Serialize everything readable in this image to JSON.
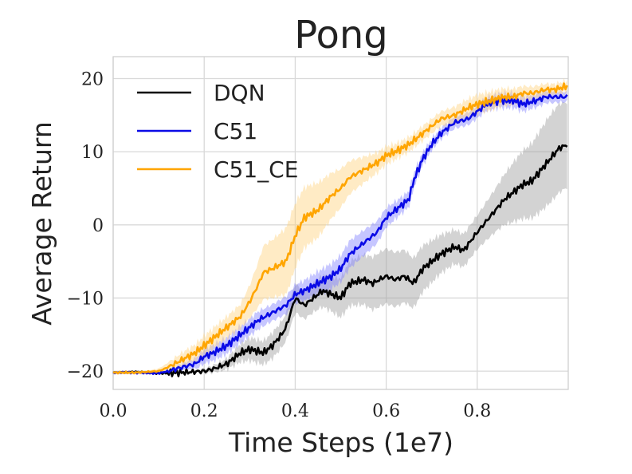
{
  "chart_data": {
    "type": "line",
    "title": "Pong",
    "xlabel": "Time Steps (1e7)",
    "ylabel": "Average Return",
    "xlim": [
      0.0,
      1.0
    ],
    "ylim": [
      -22.5,
      23
    ],
    "xticks": [
      0.0,
      0.2,
      0.4,
      0.6,
      0.8
    ],
    "xtick_labels": [
      "0.0",
      "0.2",
      "0.4",
      "0.6",
      "0.8"
    ],
    "yticks": [
      -20,
      -10,
      0,
      10,
      20
    ],
    "ytick_labels": [
      "−20",
      "−10",
      "0",
      "10",
      "20"
    ],
    "grid": true,
    "legend_position": "upper-left",
    "series": [
      {
        "name": "DQN",
        "color": "#000000",
        "band_color": "#9e9e9e",
        "x": [
          0.0,
          0.05,
          0.1,
          0.15,
          0.2,
          0.22,
          0.25,
          0.28,
          0.3,
          0.33,
          0.35,
          0.37,
          0.38,
          0.4,
          0.42,
          0.44,
          0.46,
          0.48,
          0.5,
          0.52,
          0.55,
          0.57,
          0.6,
          0.62,
          0.64,
          0.66,
          0.68,
          0.7,
          0.72,
          0.75,
          0.77,
          0.8,
          0.82,
          0.84,
          0.86,
          0.88,
          0.9,
          0.92,
          0.94,
          0.96,
          0.98,
          1.0
        ],
        "values": [
          -20.2,
          -20.1,
          -20.3,
          -20.2,
          -20.0,
          -19.7,
          -19.0,
          -17.5,
          -17.0,
          -17.5,
          -16.5,
          -15.0,
          -14.0,
          -10.0,
          -11.0,
          -10.0,
          -9.0,
          -9.5,
          -10.0,
          -8.0,
          -7.5,
          -8.0,
          -7.0,
          -7.5,
          -7.0,
          -8.0,
          -6.0,
          -5.0,
          -4.0,
          -3.0,
          -3.5,
          -1.0,
          0.5,
          2.0,
          3.5,
          4.5,
          5.5,
          6.0,
          7.5,
          9.0,
          10.5,
          11.0
        ],
        "band": [
          0,
          0,
          0,
          0,
          0.3,
          0.4,
          0.6,
          1.0,
          1.3,
          1.5,
          1.8,
          2.0,
          2.2,
          2.5,
          2.5,
          2.6,
          2.8,
          2.8,
          2.9,
          3.0,
          3.0,
          3.0,
          3.0,
          3.0,
          3.0,
          3.0,
          3.0,
          3.0,
          3.0,
          3.0,
          3.0,
          3.0,
          3.2,
          3.3,
          3.5,
          3.8,
          4.0,
          4.2,
          4.5,
          4.8,
          5.0,
          5.0
        ]
      },
      {
        "name": "C51",
        "color": "#0a0ae6",
        "band_color": "#8080ff",
        "x": [
          0.0,
          0.05,
          0.1,
          0.12,
          0.15,
          0.18,
          0.2,
          0.22,
          0.25,
          0.28,
          0.3,
          0.32,
          0.35,
          0.38,
          0.4,
          0.42,
          0.45,
          0.48,
          0.5,
          0.52,
          0.55,
          0.58,
          0.6,
          0.62,
          0.64,
          0.65,
          0.66,
          0.68,
          0.7,
          0.72,
          0.75,
          0.78,
          0.8,
          0.82,
          0.85,
          0.88,
          0.9,
          0.93,
          0.95,
          0.97,
          1.0
        ],
        "values": [
          -20.2,
          -20.2,
          -20.3,
          -20.0,
          -19.5,
          -19.0,
          -18.0,
          -17.5,
          -16.5,
          -15.0,
          -14.0,
          -13.0,
          -12.0,
          -11.0,
          -9.5,
          -9.0,
          -8.0,
          -7.0,
          -6.0,
          -4.0,
          -2.5,
          -1.0,
          1.0,
          2.0,
          3.0,
          3.5,
          6.0,
          9.0,
          11.0,
          12.5,
          14.0,
          14.5,
          15.5,
          16.5,
          17.0,
          17.0,
          16.5,
          17.0,
          17.5,
          17.5,
          17.5
        ],
        "band": [
          0,
          0,
          0,
          0.2,
          0.4,
          0.6,
          0.8,
          0.9,
          1.0,
          1.2,
          1.3,
          1.5,
          1.5,
          1.6,
          1.6,
          1.6,
          1.6,
          1.5,
          1.5,
          1.5,
          1.4,
          1.3,
          1.2,
          1.2,
          1.2,
          1.2,
          1.2,
          1.1,
          1.0,
          1.0,
          1.0,
          0.9,
          0.9,
          0.8,
          0.8,
          0.8,
          0.8,
          0.8,
          0.8,
          0.8,
          0.8
        ]
      },
      {
        "name": "C51_CE",
        "color": "#ffa500",
        "band_color": "#ffd27f",
        "x": [
          0.0,
          0.05,
          0.1,
          0.12,
          0.15,
          0.18,
          0.2,
          0.22,
          0.25,
          0.28,
          0.3,
          0.32,
          0.33,
          0.35,
          0.38,
          0.4,
          0.42,
          0.45,
          0.48,
          0.5,
          0.52,
          0.55,
          0.58,
          0.6,
          0.62,
          0.65,
          0.68,
          0.7,
          0.72,
          0.75,
          0.78,
          0.8,
          0.83,
          0.86,
          0.88,
          0.9,
          0.92,
          0.95,
          0.97,
          1.0
        ],
        "values": [
          -20.2,
          -20.2,
          -20.0,
          -19.5,
          -18.5,
          -17.5,
          -16.5,
          -15.5,
          -14.0,
          -12.5,
          -10.5,
          -8.0,
          -6.5,
          -6.0,
          -5.0,
          -1.5,
          1.0,
          2.0,
          4.0,
          5.0,
          6.5,
          7.5,
          8.5,
          9.5,
          10.0,
          11.0,
          12.5,
          13.5,
          14.5,
          15.0,
          16.0,
          16.5,
          17.0,
          17.5,
          17.5,
          18.0,
          18.0,
          18.5,
          18.5,
          19.0
        ],
        "band": [
          0,
          0,
          0.3,
          0.5,
          0.8,
          1.0,
          1.3,
          1.5,
          1.8,
          2.2,
          3.0,
          4.0,
          4.5,
          4.5,
          4.5,
          4.0,
          3.5,
          3.0,
          2.5,
          2.2,
          2.0,
          1.8,
          1.6,
          1.5,
          1.4,
          1.3,
          1.2,
          1.1,
          1.0,
          1.0,
          1.0,
          1.0,
          1.0,
          1.0,
          1.0,
          1.0,
          1.0,
          1.0,
          1.0,
          1.0
        ]
      }
    ]
  }
}
